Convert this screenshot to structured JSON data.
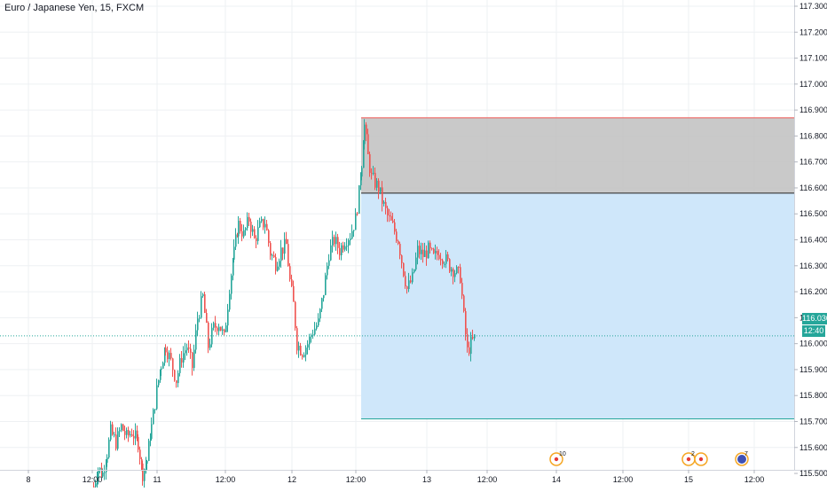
{
  "header": {
    "symbol_title": "Euro / Japanese Yen, 15, FXCM"
  },
  "price_axis": {
    "ticks": [
      "117.300",
      "117.200",
      "117.100",
      "117.000",
      "116.900",
      "116.800",
      "116.700",
      "116.600",
      "116.500",
      "116.400",
      "116.300",
      "116.200",
      "116.100",
      "116.000",
      "115.900",
      "115.800",
      "115.700",
      "115.600",
      "115.500"
    ],
    "tick_values": [
      117.3,
      117.2,
      117.1,
      117.0,
      116.9,
      116.8,
      116.7,
      116.6,
      116.5,
      116.4,
      116.3,
      116.2,
      116.1,
      116.0,
      115.9,
      115.8,
      115.7,
      115.6,
      115.5
    ],
    "last_price_label": "116.030",
    "countdown_label": "12:40"
  },
  "time_axis": {
    "labels": [
      "8",
      "12:00",
      "11",
      "12:00",
      "12",
      "12:00",
      "13",
      "12:00",
      "14",
      "12:00",
      "15",
      "12:00"
    ]
  },
  "colors": {
    "up_candle": "#26a69a",
    "down_candle": "#ef5350",
    "price_line": "#26a69a",
    "stop_zone": "#c0c0c0",
    "target_zone": "#cce6fa",
    "grid": "#eef0f3",
    "axis_text": "#131722"
  },
  "chart_data": {
    "type": "candlestick",
    "instrument": "Euro / Japanese Yen",
    "timeframe": "15",
    "source": "FXCM",
    "current_price": 116.03,
    "ylim": [
      115.44,
      117.35
    ],
    "close_path": [
      {
        "x": 105,
        "y": 115.45
      },
      {
        "x": 110,
        "y": 115.52
      },
      {
        "x": 115,
        "y": 115.5
      },
      {
        "x": 120,
        "y": 115.58
      },
      {
        "x": 124,
        "y": 115.66
      },
      {
        "x": 130,
        "y": 115.62
      },
      {
        "x": 136,
        "y": 115.68
      },
      {
        "x": 142,
        "y": 115.64
      },
      {
        "x": 148,
        "y": 115.66
      },
      {
        "x": 155,
        "y": 115.62
      },
      {
        "x": 160,
        "y": 115.5
      },
      {
        "x": 165,
        "y": 115.55
      },
      {
        "x": 170,
        "y": 115.68
      },
      {
        "x": 176,
        "y": 115.82
      },
      {
        "x": 181,
        "y": 115.92
      },
      {
        "x": 186,
        "y": 115.99
      },
      {
        "x": 192,
        "y": 115.93
      },
      {
        "x": 198,
        "y": 115.86
      },
      {
        "x": 204,
        "y": 115.95
      },
      {
        "x": 210,
        "y": 115.99
      },
      {
        "x": 216,
        "y": 115.91
      },
      {
        "x": 222,
        "y": 116.1
      },
      {
        "x": 228,
        "y": 116.18
      },
      {
        "x": 234,
        "y": 115.99
      },
      {
        "x": 240,
        "y": 116.06
      },
      {
        "x": 246,
        "y": 116.08
      },
      {
        "x": 252,
        "y": 116.02
      },
      {
        "x": 258,
        "y": 116.22
      },
      {
        "x": 263,
        "y": 116.35
      },
      {
        "x": 268,
        "y": 116.46
      },
      {
        "x": 274,
        "y": 116.42
      },
      {
        "x": 280,
        "y": 116.48
      },
      {
        "x": 286,
        "y": 116.4
      },
      {
        "x": 292,
        "y": 116.45
      },
      {
        "x": 298,
        "y": 116.47
      },
      {
        "x": 304,
        "y": 116.35
      },
      {
        "x": 310,
        "y": 116.31
      },
      {
        "x": 316,
        "y": 116.36
      },
      {
        "x": 322,
        "y": 116.38
      },
      {
        "x": 326,
        "y": 116.24
      },
      {
        "x": 330,
        "y": 116.15
      },
      {
        "x": 334,
        "y": 116.0
      },
      {
        "x": 340,
        "y": 115.97
      },
      {
        "x": 346,
        "y": 116.0
      },
      {
        "x": 352,
        "y": 116.05
      },
      {
        "x": 358,
        "y": 116.08
      },
      {
        "x": 364,
        "y": 116.2
      },
      {
        "x": 370,
        "y": 116.35
      },
      {
        "x": 376,
        "y": 116.4
      },
      {
        "x": 382,
        "y": 116.36
      },
      {
        "x": 388,
        "y": 116.4
      },
      {
        "x": 394,
        "y": 116.42
      },
      {
        "x": 400,
        "y": 116.48
      },
      {
        "x": 404,
        "y": 116.58
      },
      {
        "x": 407,
        "y": 116.7
      },
      {
        "x": 410,
        "y": 116.84
      },
      {
        "x": 414,
        "y": 116.72
      },
      {
        "x": 418,
        "y": 116.64
      },
      {
        "x": 422,
        "y": 116.62
      },
      {
        "x": 426,
        "y": 116.6
      },
      {
        "x": 430,
        "y": 116.55
      },
      {
        "x": 436,
        "y": 116.49
      },
      {
        "x": 442,
        "y": 116.45
      },
      {
        "x": 448,
        "y": 116.4
      },
      {
        "x": 454,
        "y": 116.28
      },
      {
        "x": 458,
        "y": 116.21
      },
      {
        "x": 464,
        "y": 116.25
      },
      {
        "x": 470,
        "y": 116.36
      },
      {
        "x": 476,
        "y": 116.34
      },
      {
        "x": 482,
        "y": 116.36
      },
      {
        "x": 488,
        "y": 116.33
      },
      {
        "x": 494,
        "y": 116.35
      },
      {
        "x": 500,
        "y": 116.33
      },
      {
        "x": 506,
        "y": 116.3
      },
      {
        "x": 512,
        "y": 116.28
      },
      {
        "x": 518,
        "y": 116.26
      },
      {
        "x": 522,
        "y": 116.1
      },
      {
        "x": 526,
        "y": 115.97
      },
      {
        "x": 530,
        "y": 116.0
      },
      {
        "x": 536,
        "y": 116.03
      }
    ],
    "position_tool": {
      "entry": 116.58,
      "stop": 116.87,
      "target": 115.71,
      "x_start": 407,
      "x_end": 895
    },
    "events": [
      {
        "x": 627,
        "kind": "flag-event",
        "count": "10"
      },
      {
        "x": 776,
        "kind": "flag-event",
        "count": "2"
      },
      {
        "x": 790,
        "kind": "flag-event",
        "count": ""
      },
      {
        "x": 836,
        "kind": "earnings-event",
        "count": "7"
      }
    ]
  }
}
